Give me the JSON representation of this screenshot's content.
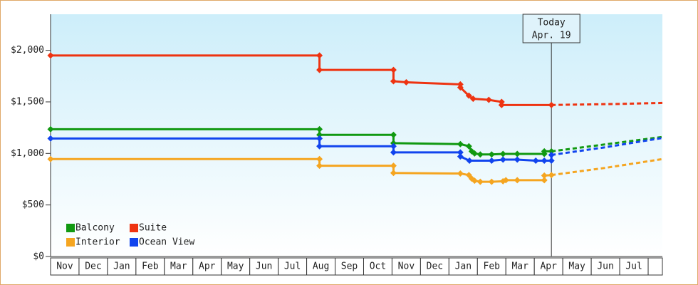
{
  "chart_data": {
    "type": "step",
    "categories": [
      "Nov",
      "Dec",
      "Jan",
      "Feb",
      "Mar",
      "Apr",
      "May",
      "Jun",
      "Jul",
      "Aug",
      "Sep",
      "Oct",
      "Nov",
      "Dec",
      "Jan",
      "Feb",
      "Mar",
      "Apr",
      "May",
      "Jun",
      "Jul"
    ],
    "xlim": [
      0,
      21.5
    ],
    "ylim": [
      0,
      2350
    ],
    "yticks": [
      {
        "value": 0,
        "label": "$0"
      },
      {
        "value": 500,
        "label": "$500"
      },
      {
        "value": 1000,
        "label": "$1,000"
      },
      {
        "value": 1500,
        "label": "$1,500"
      },
      {
        "value": 2000,
        "label": "$2,000"
      }
    ],
    "legend": "bottom-left",
    "today": {
      "x": 17.6,
      "label": [
        "Today",
        "Apr. 19"
      ]
    },
    "series": [
      {
        "name": "Balcony",
        "color": "#119911",
        "x": [
          0,
          9.45,
          9.45,
          12.05,
          12.05,
          14.4,
          14.7,
          14.8,
          14.9,
          15.1,
          15.5,
          15.9,
          16.4,
          17.35,
          17.35,
          17.6
        ],
        "values": [
          1235,
          1235,
          1180,
          1180,
          1100,
          1090,
          1070,
          1020,
          1000,
          990,
          990,
          995,
          995,
          995,
          1020,
          1020
        ],
        "projection": {
          "x": [
            17.6,
            19,
            21.5
          ],
          "values": [
            1020,
            1070,
            1160
          ]
        }
      },
      {
        "name": "Suite",
        "color": "#ee3311",
        "x": [
          0,
          9.45,
          9.45,
          12.05,
          12.05,
          12.5,
          14.4,
          14.4,
          14.7,
          14.85,
          15.4,
          15.85,
          15.85,
          17.6
        ],
        "values": [
          1950,
          1950,
          1810,
          1810,
          1700,
          1690,
          1670,
          1640,
          1560,
          1530,
          1520,
          1500,
          1470,
          1470
        ],
        "projection": {
          "x": [
            17.6,
            20,
            21.5
          ],
          "values": [
            1470,
            1480,
            1490
          ]
        }
      },
      {
        "name": "Interior",
        "color": "#f5a520",
        "x": [
          0,
          9.45,
          9.45,
          12.05,
          12.05,
          14.4,
          14.7,
          14.8,
          14.9,
          15.1,
          15.5,
          15.9,
          16.0,
          16.4,
          17.35,
          17.35,
          17.6
        ],
        "values": [
          945,
          945,
          880,
          880,
          810,
          805,
          790,
          755,
          735,
          725,
          725,
          730,
          740,
          740,
          740,
          785,
          790
        ],
        "projection": {
          "x": [
            17.6,
            19.5,
            21.5
          ],
          "values": [
            790,
            860,
            945
          ]
        }
      },
      {
        "name": "Ocean View",
        "color": "#1144ee",
        "x": [
          0,
          9.45,
          9.45,
          12.05,
          12.05,
          14.4,
          14.4,
          14.72,
          15.5,
          15.9,
          16.4,
          17.05,
          17.35,
          17.6,
          17.6
        ],
        "values": [
          1145,
          1145,
          1070,
          1070,
          1010,
          1010,
          970,
          930,
          930,
          940,
          940,
          930,
          930,
          930,
          985
        ],
        "projection": {
          "x": [
            17.6,
            19.5,
            21.5
          ],
          "values": [
            985,
            1060,
            1150
          ]
        }
      }
    ]
  }
}
